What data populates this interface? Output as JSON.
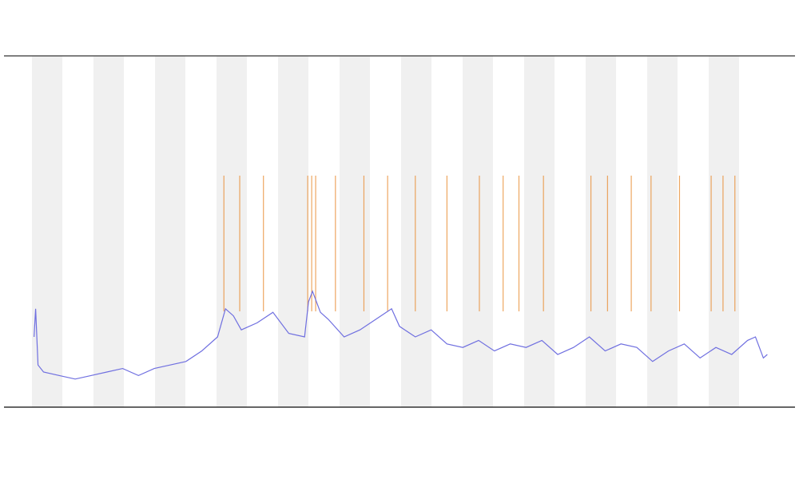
{
  "chart_data": {
    "type": "line",
    "xlim": [
      0,
      100
    ],
    "ylim": [
      0,
      100
    ],
    "series": [
      {
        "color": "#6f6fe0",
        "x": [
          3.8,
          4.0,
          4.3,
          5,
          7,
          9,
          11,
          13,
          15,
          17,
          19,
          21,
          23,
          25,
          27,
          28,
          29,
          30,
          32,
          34,
          36,
          38,
          38.5,
          39,
          40,
          41,
          43,
          45,
          47,
          49,
          50,
          52,
          54,
          56,
          58,
          60,
          62,
          64,
          66,
          68,
          70,
          72,
          74,
          76,
          78,
          80,
          82,
          84,
          86,
          88,
          90,
          92,
          94,
          95,
          96,
          96.5
        ],
        "values": [
          20,
          28,
          12,
          10,
          9,
          8,
          9,
          10,
          11,
          9,
          11,
          12,
          13,
          16,
          20,
          28,
          26,
          22,
          24,
          27,
          21,
          20,
          30,
          33,
          27,
          25,
          20,
          22,
          25,
          28,
          23,
          20,
          22,
          18,
          17,
          19,
          16,
          18,
          17,
          19,
          15,
          17,
          20,
          16,
          18,
          17,
          13,
          16,
          18,
          14,
          17,
          15,
          19,
          20,
          14,
          15
        ]
      }
    ],
    "events": {
      "color": "#e8892c",
      "x": [
        27.8,
        29.8,
        32.8,
        38.4,
        38.9,
        39.4,
        41.9,
        45.5,
        48.5,
        52,
        56,
        60.1,
        63.1,
        65.1,
        68.2,
        74.2,
        76.3,
        79.3,
        81.8,
        85.4,
        89.4,
        90.9,
        92.4
      ]
    }
  }
}
